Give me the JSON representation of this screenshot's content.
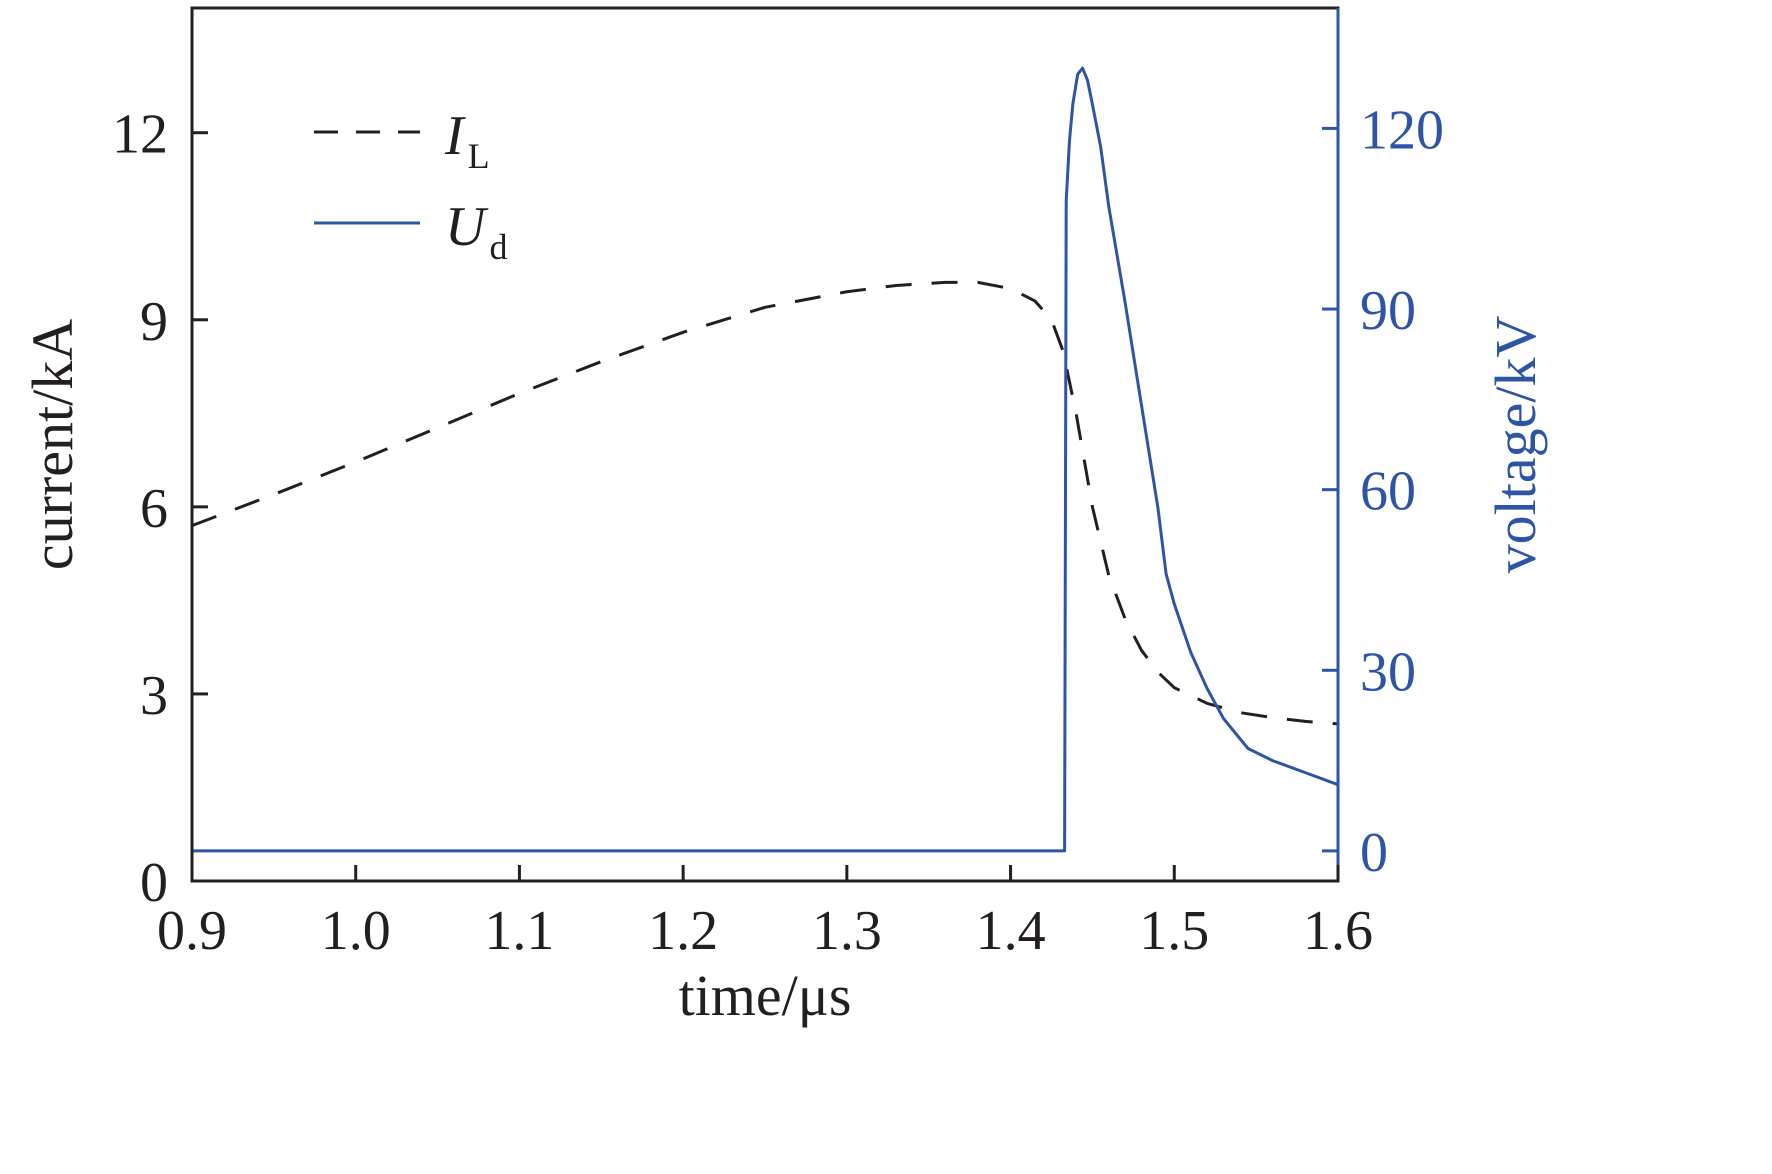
{
  "chart_data": {
    "type": "line",
    "xlabel": "time/μs",
    "ylabel_left": "current/kA",
    "ylabel_right": "voltage/kV",
    "xlim": [
      0.9,
      1.6
    ],
    "ylim_left": [
      0,
      14
    ],
    "ylim_right": [
      -5,
      140
    ],
    "xticks": [
      "0.9",
      "1.0",
      "1.1",
      "1.2",
      "1.3",
      "1.4",
      "1.5",
      "1.6"
    ],
    "yticks_left": [
      "0",
      "3",
      "6",
      "9",
      "12"
    ],
    "yticks_right": [
      "0",
      "30",
      "60",
      "90",
      "120"
    ],
    "grid": false,
    "legend_position": "top-left",
    "colors": {
      "current": "#231f20",
      "voltage": "#2e55a5",
      "axis": "#231f20"
    },
    "series": [
      {
        "name": "I",
        "name_sub": "L",
        "axis": "left",
        "style": "dashed",
        "x": [
          0.9,
          0.95,
          1.0,
          1.05,
          1.1,
          1.15,
          1.2,
          1.25,
          1.3,
          1.33,
          1.36,
          1.38,
          1.4,
          1.415,
          1.425,
          1.432,
          1.44,
          1.45,
          1.46,
          1.47,
          1.48,
          1.49,
          1.5,
          1.52,
          1.54,
          1.56,
          1.58,
          1.6
        ],
        "y": [
          5.7,
          6.2,
          6.72,
          7.27,
          7.82,
          8.33,
          8.8,
          9.2,
          9.45,
          9.55,
          9.6,
          9.6,
          9.5,
          9.3,
          9.0,
          8.5,
          7.5,
          6.0,
          4.9,
          4.2,
          3.7,
          3.35,
          3.1,
          2.85,
          2.7,
          2.62,
          2.56,
          2.52
        ]
      },
      {
        "name": "U",
        "name_sub": "d",
        "axis": "right",
        "style": "solid",
        "x": [
          0.9,
          1.0,
          1.1,
          1.2,
          1.3,
          1.4,
          1.433,
          1.434,
          1.436,
          1.438,
          1.441,
          1.444,
          1.447,
          1.45,
          1.455,
          1.46,
          1.47,
          1.48,
          1.49,
          1.495,
          1.5,
          1.51,
          1.52,
          1.53,
          1.545,
          1.56,
          1.58,
          1.6
        ],
        "y": [
          0,
          0,
          0,
          0,
          0,
          0,
          0,
          108,
          118,
          124,
          129,
          130,
          128,
          124,
          117,
          107,
          91,
          74,
          57,
          46,
          41,
          33,
          27,
          22,
          17,
          15,
          13,
          11
        ]
      }
    ]
  }
}
